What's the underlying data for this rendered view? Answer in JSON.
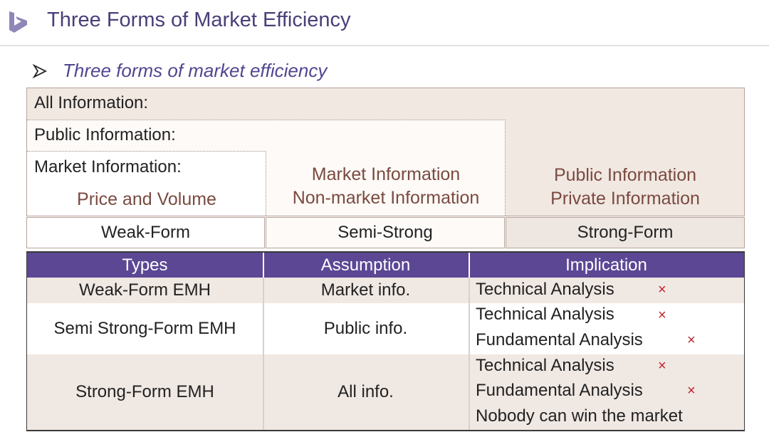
{
  "header": {
    "title": "Three Forms of Market Efficiency",
    "logo_icon": "bing-logo-icon"
  },
  "bullet": {
    "icon": "arrow-bullet-icon",
    "text": "Three forms of market efficiency"
  },
  "info_levels": {
    "all_label": "All Information:",
    "public_label": "Public Information:",
    "market_label": "Market Information:",
    "weak_content": [
      "Price and Volume"
    ],
    "semi_content": [
      "Market Information",
      "Non-market Information"
    ],
    "strong_content": [
      "Public Information",
      "Private Information"
    ]
  },
  "forms": [
    "Weak-Form",
    "Semi-Strong",
    "Strong-Form"
  ],
  "table": {
    "headers": [
      "Types",
      "Assumption",
      "Implication"
    ],
    "rows": [
      {
        "type": "Weak-Form EMH",
        "assumption": "Market info.",
        "implications": [
          {
            "text": "Technical Analysis",
            "mark": "×"
          }
        ]
      },
      {
        "type": "Semi Strong-Form EMH",
        "assumption": "Public info.",
        "implications": [
          {
            "text": "Technical Analysis",
            "mark": "×"
          },
          {
            "text": "Fundamental Analysis",
            "mark": "×"
          }
        ]
      },
      {
        "type": "Strong-Form EMH",
        "assumption": "All info.",
        "implications": [
          {
            "text": "Technical Analysis",
            "mark": "×"
          },
          {
            "text": "Fundamental Analysis",
            "mark": "×"
          },
          {
            "text": "Nobody can win the market",
            "mark": ""
          }
        ]
      }
    ]
  },
  "colors": {
    "title": "#4a3f78",
    "header_bar": "#5c4795",
    "accent_brown": "#7a4a40",
    "cross_mark": "#c0262d",
    "row_tint": "#f0e8e3"
  }
}
